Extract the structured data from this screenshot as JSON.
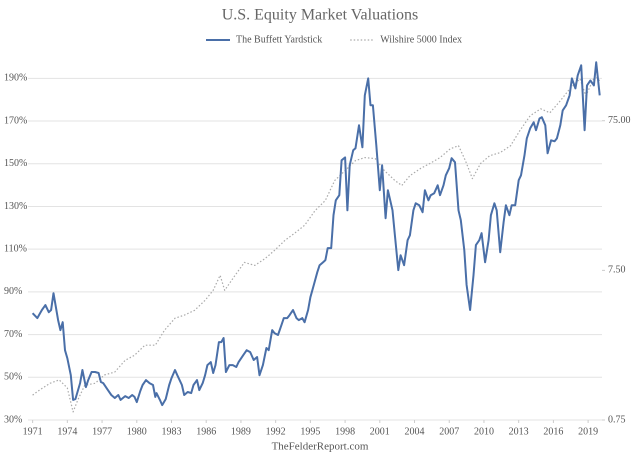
{
  "chart_data": {
    "type": "line",
    "title": "U.S. Equity Market Valuations",
    "source": "TheFelderReport.com",
    "xlim": [
      1970.6,
      2020.2
    ],
    "xticks": [
      1971,
      1974,
      1977,
      1980,
      1983,
      1986,
      1989,
      1992,
      1995,
      1998,
      2001,
      2004,
      2007,
      2010,
      2013,
      2016,
      2019
    ],
    "ylim": [
      30,
      200
    ],
    "yticks": [
      {
        "value": 30,
        "label": "30%"
      },
      {
        "value": 50,
        "label": "50%"
      },
      {
        "value": 70,
        "label": "70%"
      },
      {
        "value": 90,
        "label": "90%"
      },
      {
        "value": 110,
        "label": "110%"
      },
      {
        "value": 130,
        "label": "130%"
      },
      {
        "value": 150,
        "label": "150%"
      },
      {
        "value": 170,
        "label": "170%"
      },
      {
        "value": 190,
        "label": "190%"
      }
    ],
    "y2lim": [
      0.75,
      200
    ],
    "y2scale": "log",
    "y2ticks": [
      0.75,
      {
        "value": 7.5,
        "label": "7.50"
      },
      {
        "value": 75,
        "label": "75.00"
      }
    ],
    "grid": true,
    "series": [
      {
        "name": "The Buffett Yardstick",
        "color": "#4a6fa8",
        "style": "solid",
        "x": [
          1971.0,
          1971.4,
          1971.8,
          1972.1,
          1972.4,
          1972.6,
          1972.8,
          1973.2,
          1973.4,
          1973.6,
          1973.8,
          1974.0,
          1974.3,
          1974.5,
          1974.7,
          1975.1,
          1975.3,
          1975.6,
          1975.8,
          1976.1,
          1976.4,
          1976.7,
          1976.9,
          1977.1,
          1977.5,
          1977.8,
          1978.1,
          1978.4,
          1978.6,
          1979.0,
          1979.3,
          1979.6,
          1979.8,
          1980.0,
          1980.3,
          1980.5,
          1980.8,
          1981.1,
          1981.4,
          1981.6,
          1981.7,
          1982.0,
          1982.2,
          1982.5,
          1982.8,
          1983.0,
          1983.3,
          1983.5,
          1983.9,
          1984.1,
          1984.4,
          1984.7,
          1984.9,
          1985.2,
          1985.4,
          1985.7,
          1985.9,
          1986.1,
          1986.4,
          1986.6,
          1986.8,
          1987.1,
          1987.3,
          1987.5,
          1987.7,
          1988.0,
          1988.3,
          1988.6,
          1988.8,
          1989.2,
          1989.5,
          1989.8,
          1990.1,
          1990.4,
          1990.6,
          1990.9,
          1991.2,
          1991.4,
          1991.7,
          1991.9,
          1992.2,
          1992.5,
          1992.7,
          1993.0,
          1993.2,
          1993.5,
          1993.8,
          1994.0,
          1994.3,
          1994.5,
          1994.8,
          1995.0,
          1995.3,
          1995.6,
          1995.8,
          1996.1,
          1996.3,
          1996.5,
          1996.8,
          1997.0,
          1997.2,
          1997.5,
          1997.7,
          1998.0,
          1998.2,
          1998.4,
          1998.7,
          1998.9,
          1999.2,
          1999.5,
          1999.7,
          2000.0,
          2000.2,
          2000.4,
          2000.7,
          2001.0,
          2001.2,
          2001.5,
          2001.7,
          2002.1,
          2002.3,
          2002.6,
          2002.8,
          2003.1,
          2003.4,
          2003.6,
          2003.9,
          2004.1,
          2004.4,
          2004.7,
          2004.9,
          2005.2,
          2005.4,
          2005.7,
          2006.0,
          2006.2,
          2006.5,
          2006.7,
          2007.0,
          2007.2,
          2007.5,
          2007.8,
          2008.0,
          2008.3,
          2008.5,
          2008.8,
          2009.1,
          2009.3,
          2009.6,
          2009.8,
          2010.1,
          2010.4,
          2010.6,
          2010.9,
          2011.1,
          2011.4,
          2011.7,
          2011.9,
          2012.2,
          2012.4,
          2012.7,
          2013.0,
          2013.2,
          2013.5,
          2013.7,
          2014.0,
          2014.3,
          2014.5,
          2014.8,
          2015.0,
          2015.3,
          2015.5,
          2015.8,
          2016.1,
          2016.3,
          2016.6,
          2016.8,
          2017.1,
          2017.4,
          2017.6,
          2017.9,
          2018.1,
          2018.4,
          2018.7,
          2018.9,
          2019.2,
          2019.5,
          2019.7,
          2020.0
        ],
        "values": [
          80,
          77.7,
          81.5,
          83.8,
          80.5,
          81.5,
          89.4,
          76.8,
          72.1,
          75.8,
          62.7,
          59,
          51,
          39.4,
          39.8,
          47.3,
          53.4,
          45.4,
          48.7,
          52.5,
          52.5,
          52,
          47.8,
          47.3,
          44,
          41.7,
          40.3,
          41.7,
          39.4,
          41.2,
          40.3,
          41.7,
          40.8,
          38.4,
          43.6,
          46.4,
          48.7,
          47.3,
          46.4,
          40.8,
          42.6,
          39.4,
          37,
          39.8,
          46.4,
          49.6,
          53.4,
          51,
          46.4,
          41.7,
          43.1,
          42.6,
          46.4,
          48.7,
          44,
          47.3,
          51,
          55.7,
          57.1,
          52,
          55.7,
          66.5,
          66.5,
          68.4,
          52.5,
          55.7,
          55.7,
          54.8,
          57.1,
          60.4,
          62.7,
          61.8,
          58.1,
          59.5,
          51,
          55.7,
          63.7,
          62.7,
          72.1,
          70.7,
          69.8,
          74.4,
          77.7,
          77.7,
          79.1,
          81.5,
          77.7,
          76.8,
          77.7,
          75.8,
          81.5,
          87.5,
          93.2,
          99.2,
          102.5,
          103.9,
          104.9,
          110.5,
          110.5,
          125.9,
          132.9,
          135.3,
          151.6,
          153,
          128.2,
          149.3,
          156.3,
          157.3,
          168,
          157.7,
          182,
          190,
          177.4,
          177.4,
          158.7,
          137.6,
          149.3,
          124.5,
          137.6,
          128.2,
          116.5,
          100.2,
          107.2,
          102.5,
          114.2,
          116.5,
          128.2,
          131.5,
          130.6,
          127.3,
          137.6,
          132.9,
          135.3,
          136.2,
          139.9,
          135.3,
          139.9,
          144.6,
          147.9,
          152.6,
          150.7,
          128.2,
          123.6,
          109.5,
          93.2,
          81.5,
          97.8,
          111.9,
          114.2,
          117.5,
          103.9,
          114.2,
          125.9,
          131.5,
          128.2,
          108.6,
          122.6,
          130.6,
          125.9,
          130.6,
          130.6,
          142.3,
          144.6,
          154,
          161.9,
          166.6,
          169.4,
          165.7,
          171.2,
          171.8,
          168,
          154.9,
          161,
          160.5,
          161.9,
          168,
          175,
          177.4,
          182,
          190,
          185.3,
          191.4,
          196.1,
          165.7,
          186.7,
          189,
          186.7,
          197.5,
          182
        ]
      },
      {
        "name": "Wilshire 5000 Index",
        "color": "#aaaaaa",
        "style": "dotted",
        "axis": "y2",
        "x": [
          1971.0,
          1971.6,
          1972.5,
          1973.3,
          1974.0,
          1974.5,
          1974.9,
          1975.5,
          1976.4,
          1977.2,
          1978.1,
          1979.0,
          1979.8,
          1980.7,
          1981.6,
          1982.4,
          1983.3,
          1984.1,
          1985.0,
          1985.9,
          1986.6,
          1987.2,
          1987.6,
          1988.5,
          1989.3,
          1990.2,
          1991.1,
          1991.9,
          1992.8,
          1993.7,
          1994.5,
          1995.4,
          1996.3,
          1997.1,
          1998.0,
          1998.9,
          1999.7,
          2000.6,
          2001.4,
          2002.3,
          2002.9,
          2003.6,
          2004.5,
          2005.3,
          2006.2,
          2007.1,
          2007.8,
          2008.4,
          2009.0,
          2009.7,
          2010.5,
          2011.4,
          2012.3,
          2013.1,
          2014.0,
          2014.9,
          2015.7,
          2016.6,
          2017.4,
          2018.3,
          2018.8,
          2019.6,
          2020.0
        ],
        "values": [
          1.1,
          1.19,
          1.32,
          1.39,
          1.23,
          0.85,
          1.02,
          1.28,
          1.32,
          1.5,
          1.57,
          1.88,
          2.03,
          2.37,
          2.37,
          2.99,
          3.59,
          3.76,
          4.06,
          4.73,
          5.52,
          6.95,
          5.52,
          6.95,
          8.48,
          8.1,
          9.0,
          10.2,
          11.9,
          13.4,
          15.0,
          18.8,
          22.0,
          29.9,
          34.8,
          40.6,
          42.5,
          41.9,
          34.8,
          29.9,
          27.7,
          32.2,
          35.9,
          38.8,
          42.5,
          48.8,
          51.1,
          40.6,
          30.8,
          38.8,
          43.8,
          45.9,
          51.1,
          64.3,
          81.0,
          90.1,
          84.8,
          102,
          122,
          143,
          110,
          150,
          139
        ]
      }
    ]
  }
}
